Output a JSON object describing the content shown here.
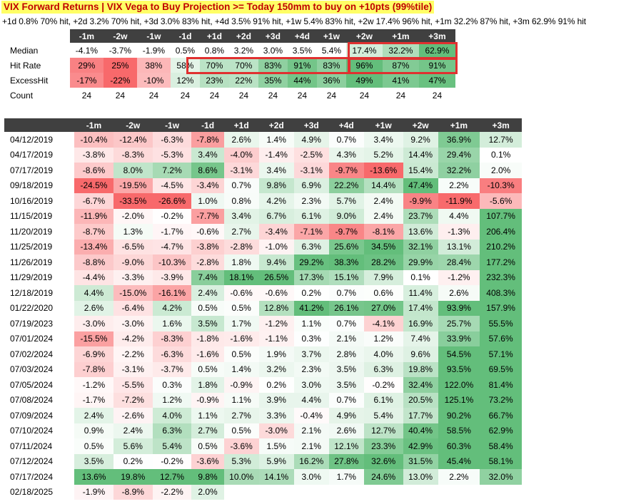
{
  "title": "VIX Forward Returns | VIX Vega to Buy Projection >= Today 150mm to buy on +10pts (99%tile)",
  "subtitle": "+1d 0.8% 70% hit, +2d 3.2% 70% hit, +3d 3.0% 83% hit, +4d 3.5% 91% hit, +1w 5.4% 83% hit, +2w 17.4% 96% hit, +1m 32.2% 87% hit, +3m 62.9% 91% hit",
  "columns": [
    "-1m",
    "-2w",
    "-1w",
    "-1d",
    "+1d",
    "+2d",
    "+3d",
    "+4d",
    "+1w",
    "+2w",
    "+1m",
    "+3m"
  ],
  "summary": {
    "rows": [
      {
        "label": "Median",
        "values": [
          "-4.1%",
          "-3.7%",
          "-1.9%",
          "0.5%",
          "0.8%",
          "3.2%",
          "3.0%",
          "3.5%",
          "5.4%",
          "17.4%",
          "32.2%",
          "62.9%"
        ]
      },
      {
        "label": "Hit Rate",
        "values": [
          "29%",
          "25%",
          "38%",
          "58%",
          "70%",
          "70%",
          "83%",
          "91%",
          "83%",
          "96%",
          "87%",
          "91%"
        ]
      },
      {
        "label": "ExcessHit",
        "values": [
          "-17%",
          "-22%",
          "-10%",
          "12%",
          "23%",
          "22%",
          "35%",
          "44%",
          "36%",
          "49%",
          "41%",
          "47%"
        ]
      },
      {
        "label": "Count",
        "values": [
          "24",
          "24",
          "24",
          "24",
          "24",
          "24",
          "24",
          "24",
          "24",
          "24",
          "24",
          "24"
        ]
      }
    ]
  },
  "events": [
    {
      "date": "04/12/2019",
      "values": [
        "-10.4%",
        "-12.4%",
        "-6.3%",
        "-7.8%",
        "2.6%",
        "1.4%",
        "4.9%",
        "0.7%",
        "3.4%",
        "9.2%",
        "36.9%",
        "12.7%"
      ]
    },
    {
      "date": "04/17/2019",
      "values": [
        "-3.8%",
        "-8.3%",
        "-5.3%",
        "3.4%",
        "-4.0%",
        "-1.4%",
        "-2.5%",
        "4.3%",
        "5.2%",
        "14.4%",
        "29.4%",
        "0.1%"
      ]
    },
    {
      "date": "07/17/2019",
      "values": [
        "-8.6%",
        "8.0%",
        "7.2%",
        "8.6%",
        "-3.1%",
        "3.4%",
        "-3.1%",
        "-9.7%",
        "-13.6%",
        "15.4%",
        "32.2%",
        "2.0%"
      ]
    },
    {
      "date": "09/18/2019",
      "values": [
        "-24.5%",
        "-19.5%",
        "-4.5%",
        "-3.4%",
        "0.7%",
        "9.8%",
        "6.9%",
        "22.2%",
        "14.4%",
        "47.4%",
        "2.2%",
        "-10.3%"
      ]
    },
    {
      "date": "10/16/2019",
      "values": [
        "-6.7%",
        "-33.5%",
        "-26.6%",
        "1.0%",
        "0.8%",
        "4.2%",
        "2.3%",
        "5.7%",
        "2.4%",
        "-9.9%",
        "-11.9%",
        "-5.6%"
      ]
    },
    {
      "date": "11/15/2019",
      "values": [
        "-11.9%",
        "-2.0%",
        "-0.2%",
        "-7.7%",
        "3.4%",
        "6.7%",
        "6.1%",
        "9.0%",
        "2.4%",
        "23.7%",
        "4.4%",
        "107.7%"
      ]
    },
    {
      "date": "11/20/2019",
      "values": [
        "-8.7%",
        "1.3%",
        "-1.7%",
        "-0.6%",
        "2.7%",
        "-3.4%",
        "-7.1%",
        "-9.7%",
        "-8.1%",
        "13.6%",
        "-1.3%",
        "206.4%"
      ]
    },
    {
      "date": "11/25/2019",
      "values": [
        "-13.4%",
        "-6.5%",
        "-4.7%",
        "-3.8%",
        "-2.8%",
        "-1.0%",
        "6.3%",
        "25.6%",
        "34.5%",
        "32.1%",
        "13.1%",
        "210.2%"
      ]
    },
    {
      "date": "11/26/2019",
      "values": [
        "-8.8%",
        "-9.0%",
        "-10.3%",
        "-2.8%",
        "1.8%",
        "9.4%",
        "29.2%",
        "38.3%",
        "28.2%",
        "29.9%",
        "28.4%",
        "177.2%"
      ]
    },
    {
      "date": "11/29/2019",
      "values": [
        "-4.4%",
        "-3.3%",
        "-3.9%",
        "7.4%",
        "18.1%",
        "26.5%",
        "17.3%",
        "15.1%",
        "7.9%",
        "0.1%",
        "-1.2%",
        "232.3%"
      ]
    },
    {
      "date": "12/18/2019",
      "values": [
        "4.4%",
        "-15.0%",
        "-16.1%",
        "2.4%",
        "-0.6%",
        "-0.6%",
        "0.2%",
        "0.7%",
        "0.6%",
        "11.4%",
        "2.6%",
        "408.3%"
      ]
    },
    {
      "date": "01/22/2020",
      "values": [
        "2.6%",
        "-6.4%",
        "4.2%",
        "0.5%",
        "0.5%",
        "12.8%",
        "41.2%",
        "26.1%",
        "27.0%",
        "17.4%",
        "93.9%",
        "157.9%"
      ]
    },
    {
      "date": "07/19/2023",
      "values": [
        "-3.0%",
        "-3.0%",
        "1.6%",
        "3.5%",
        "1.7%",
        "-1.2%",
        "1.1%",
        "0.7%",
        "-4.1%",
        "16.9%",
        "25.7%",
        "55.5%"
      ]
    },
    {
      "date": "07/01/2024",
      "values": [
        "-15.5%",
        "-4.2%",
        "-8.3%",
        "-1.8%",
        "-1.6%",
        "-1.1%",
        "0.3%",
        "2.1%",
        "1.2%",
        "7.4%",
        "33.9%",
        "57.6%"
      ]
    },
    {
      "date": "07/02/2024",
      "values": [
        "-6.9%",
        "-2.2%",
        "-6.3%",
        "-1.6%",
        "0.5%",
        "1.9%",
        "3.7%",
        "2.8%",
        "4.0%",
        "9.6%",
        "54.5%",
        "57.1%"
      ]
    },
    {
      "date": "07/03/2024",
      "values": [
        "-7.8%",
        "-3.1%",
        "-3.7%",
        "0.5%",
        "1.4%",
        "3.2%",
        "2.3%",
        "3.5%",
        "6.3%",
        "19.8%",
        "93.5%",
        "69.5%"
      ]
    },
    {
      "date": "07/05/2024",
      "values": [
        "-1.2%",
        "-5.5%",
        "0.3%",
        "1.8%",
        "-0.9%",
        "0.2%",
        "3.0%",
        "3.5%",
        "-0.2%",
        "32.4%",
        "122.0%",
        "81.4%"
      ]
    },
    {
      "date": "07/08/2024",
      "values": [
        "-1.7%",
        "-7.2%",
        "1.2%",
        "-0.9%",
        "1.1%",
        "3.9%",
        "4.4%",
        "0.7%",
        "6.1%",
        "20.5%",
        "125.1%",
        "73.2%"
      ]
    },
    {
      "date": "07/09/2024",
      "values": [
        "2.4%",
        "-2.6%",
        "4.0%",
        "1.1%",
        "2.7%",
        "3.3%",
        "-0.4%",
        "4.9%",
        "5.4%",
        "17.7%",
        "90.2%",
        "66.7%"
      ]
    },
    {
      "date": "07/10/2024",
      "values": [
        "0.9%",
        "2.4%",
        "6.3%",
        "2.7%",
        "0.5%",
        "-3.0%",
        "2.1%",
        "2.6%",
        "12.7%",
        "40.4%",
        "58.5%",
        "62.9%"
      ]
    },
    {
      "date": "07/11/2024",
      "values": [
        "0.5%",
        "5.6%",
        "5.4%",
        "0.5%",
        "-3.6%",
        "1.5%",
        "2.1%",
        "12.1%",
        "23.3%",
        "42.9%",
        "60.3%",
        "58.4%"
      ]
    },
    {
      "date": "07/12/2024",
      "values": [
        "3.5%",
        "0.2%",
        "-0.2%",
        "-3.6%",
        "5.3%",
        "5.9%",
        "16.2%",
        "27.8%",
        "32.6%",
        "31.5%",
        "45.4%",
        "58.1%"
      ]
    },
    {
      "date": "07/17/2024",
      "values": [
        "13.6%",
        "19.8%",
        "12.7%",
        "9.8%",
        "10.0%",
        "14.1%",
        "3.0%",
        "1.7%",
        "24.6%",
        "13.0%",
        "2.2%",
        "32.0%"
      ]
    },
    {
      "date": "02/18/2025",
      "values": [
        "-1.9%",
        "-8.9%",
        "-2.2%",
        "2.0%",
        "",
        "",
        "",
        "",
        "",
        "",
        "",
        ""
      ]
    }
  ],
  "colors": {
    "positive": "#63be7b",
    "negative": "#f8696b",
    "neutral": "#ffffff",
    "header_bg": "#404040",
    "highlight_box": "#e03030",
    "title_bg": "#ffff66",
    "title_fg": "#c00000"
  }
}
